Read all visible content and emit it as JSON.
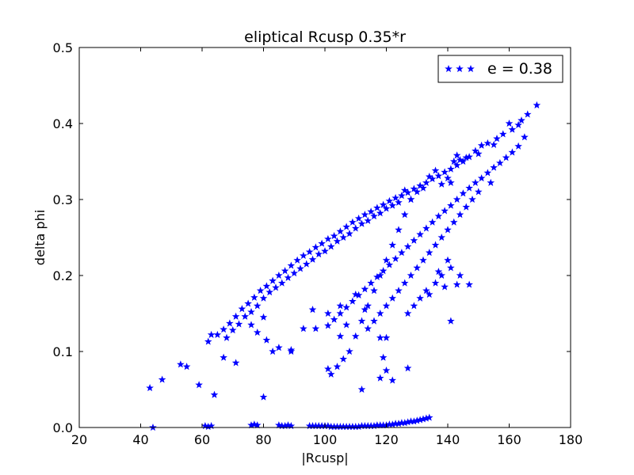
{
  "chart_data": {
    "type": "scatter",
    "title": "eliptical Rcusp 0.35*r",
    "xlabel": "|Rcusp|",
    "ylabel": "delta phi",
    "xlim": [
      20,
      180
    ],
    "ylim": [
      0,
      0.5
    ],
    "x_ticks": [
      20,
      40,
      60,
      80,
      100,
      120,
      140,
      160,
      180
    ],
    "y_ticks": [
      0.0,
      0.1,
      0.2,
      0.3,
      0.4,
      0.5
    ],
    "x_tick_labels": [
      "20",
      "40",
      "60",
      "80",
      "100",
      "120",
      "140",
      "160",
      "180"
    ],
    "y_tick_labels": [
      "0.0",
      "0.1",
      "0.2",
      "0.3",
      "0.4",
      "0.5"
    ],
    "grid": false,
    "legend_position": "top-right",
    "series": [
      {
        "name": "e = 0.38",
        "color": "#0000ff",
        "marker": "star",
        "points": [
          [
            169,
            0.424
          ],
          [
            166,
            0.412
          ],
          [
            164,
            0.404
          ],
          [
            163,
            0.398
          ],
          [
            161,
            0.392
          ],
          [
            158,
            0.386
          ],
          [
            156,
            0.38
          ],
          [
            153,
            0.374
          ],
          [
            151,
            0.371
          ],
          [
            149,
            0.364
          ],
          [
            147,
            0.356
          ],
          [
            145,
            0.35
          ],
          [
            143,
            0.345
          ],
          [
            141,
            0.34
          ],
          [
            139,
            0.336
          ],
          [
            137,
            0.331
          ],
          [
            135,
            0.327
          ],
          [
            133,
            0.322
          ],
          [
            131,
            0.318
          ],
          [
            129,
            0.314
          ],
          [
            127,
            0.309
          ],
          [
            125,
            0.305
          ],
          [
            123,
            0.302
          ],
          [
            121,
            0.298
          ],
          [
            119,
            0.293
          ],
          [
            117,
            0.289
          ],
          [
            115,
            0.284
          ],
          [
            113,
            0.28
          ],
          [
            111,
            0.275
          ],
          [
            109,
            0.27
          ],
          [
            107,
            0.264
          ],
          [
            105,
            0.258
          ],
          [
            103,
            0.252
          ],
          [
            101,
            0.248
          ],
          [
            99,
            0.242
          ],
          [
            97,
            0.237
          ],
          [
            95,
            0.231
          ],
          [
            93,
            0.226
          ],
          [
            91,
            0.22
          ],
          [
            89,
            0.213
          ],
          [
            87,
            0.206
          ],
          [
            85,
            0.2
          ],
          [
            83,
            0.193
          ],
          [
            81,
            0.186
          ],
          [
            79,
            0.18
          ],
          [
            77,
            0.171
          ],
          [
            75,
            0.163
          ],
          [
            73,
            0.156
          ],
          [
            71,
            0.146
          ],
          [
            69,
            0.137
          ],
          [
            67,
            0.129
          ],
          [
            65,
            0.122
          ],
          [
            62,
            0.113
          ],
          [
            63,
            0.122
          ],
          [
            160,
            0.4
          ],
          [
            155,
            0.372
          ],
          [
            150,
            0.36
          ],
          [
            146,
            0.355
          ],
          [
            144,
            0.352
          ],
          [
            143,
            0.358
          ],
          [
            142,
            0.35
          ],
          [
            141,
            0.322
          ],
          [
            140,
            0.328
          ],
          [
            138,
            0.32
          ],
          [
            136,
            0.338
          ],
          [
            134,
            0.33
          ],
          [
            132,
            0.315
          ],
          [
            130,
            0.31
          ],
          [
            128,
            0.3
          ],
          [
            126,
            0.312
          ],
          [
            124,
            0.296
          ],
          [
            122,
            0.292
          ],
          [
            120,
            0.288
          ],
          [
            118,
            0.282
          ],
          [
            116,
            0.278
          ],
          [
            114,
            0.272
          ],
          [
            112,
            0.268
          ],
          [
            110,
            0.262
          ],
          [
            108,
            0.255
          ],
          [
            106,
            0.25
          ],
          [
            104,
            0.245
          ],
          [
            102,
            0.238
          ],
          [
            100,
            0.232
          ],
          [
            98,
            0.228
          ],
          [
            96,
            0.221
          ],
          [
            94,
            0.215
          ],
          [
            92,
            0.209
          ],
          [
            90,
            0.203
          ],
          [
            88,
            0.197
          ],
          [
            86,
            0.19
          ],
          [
            84,
            0.184
          ],
          [
            82,
            0.178
          ],
          [
            80,
            0.17
          ],
          [
            78,
            0.16
          ],
          [
            76,
            0.152
          ],
          [
            74,
            0.146
          ],
          [
            72,
            0.136
          ],
          [
            70,
            0.128
          ],
          [
            68,
            0.118
          ],
          [
            165,
            0.382
          ],
          [
            163,
            0.37
          ],
          [
            161,
            0.362
          ],
          [
            159,
            0.355
          ],
          [
            157,
            0.348
          ],
          [
            155,
            0.342
          ],
          [
            153,
            0.335
          ],
          [
            151,
            0.328
          ],
          [
            149,
            0.322
          ],
          [
            147,
            0.315
          ],
          [
            145,
            0.308
          ],
          [
            143,
            0.3
          ],
          [
            141,
            0.292
          ],
          [
            139,
            0.285
          ],
          [
            137,
            0.278
          ],
          [
            135,
            0.27
          ],
          [
            133,
            0.262
          ],
          [
            131,
            0.254
          ],
          [
            129,
            0.246
          ],
          [
            127,
            0.238
          ],
          [
            125,
            0.23
          ],
          [
            123,
            0.222
          ],
          [
            121,
            0.214
          ],
          [
            119,
            0.206
          ],
          [
            117,
            0.198
          ],
          [
            115,
            0.19
          ],
          [
            113,
            0.182
          ],
          [
            111,
            0.174
          ],
          [
            109,
            0.166
          ],
          [
            107,
            0.158
          ],
          [
            105,
            0.15
          ],
          [
            103,
            0.142
          ],
          [
            101,
            0.134
          ],
          [
            154,
            0.322
          ],
          [
            150,
            0.31
          ],
          [
            148,
            0.3
          ],
          [
            146,
            0.29
          ],
          [
            144,
            0.28
          ],
          [
            142,
            0.27
          ],
          [
            140,
            0.26
          ],
          [
            138,
            0.25
          ],
          [
            136,
            0.24
          ],
          [
            134,
            0.23
          ],
          [
            132,
            0.22
          ],
          [
            130,
            0.21
          ],
          [
            128,
            0.2
          ],
          [
            126,
            0.19
          ],
          [
            124,
            0.18
          ],
          [
            122,
            0.17
          ],
          [
            120,
            0.16
          ],
          [
            118,
            0.15
          ],
          [
            116,
            0.14
          ],
          [
            114,
            0.13
          ],
          [
            143,
            0.188
          ],
          [
            147,
            0.188
          ],
          [
            144,
            0.2
          ],
          [
            141,
            0.21
          ],
          [
            140,
            0.22
          ],
          [
            138,
            0.2
          ],
          [
            136,
            0.19
          ],
          [
            133,
            0.18
          ],
          [
            131,
            0.17
          ],
          [
            129,
            0.16
          ],
          [
            127,
            0.15
          ],
          [
            134,
            0.175
          ],
          [
            139,
            0.185
          ],
          [
            137,
            0.205
          ],
          [
            141,
            0.14
          ],
          [
            128,
            0.3
          ],
          [
            126,
            0.28
          ],
          [
            124,
            0.26
          ],
          [
            122,
            0.24
          ],
          [
            120,
            0.22
          ],
          [
            118,
            0.2
          ],
          [
            116,
            0.18
          ],
          [
            114,
            0.16
          ],
          [
            112,
            0.14
          ],
          [
            110,
            0.12
          ],
          [
            108,
            0.1
          ],
          [
            106,
            0.09
          ],
          [
            104,
            0.08
          ],
          [
            102,
            0.07
          ],
          [
            118,
            0.118
          ],
          [
            120,
            0.118
          ],
          [
            119,
            0.092
          ],
          [
            120,
            0.075
          ],
          [
            122,
            0.062
          ],
          [
            118,
            0.065
          ],
          [
            127,
            0.078
          ],
          [
            112,
            0.05
          ],
          [
            101,
            0.077
          ],
          [
            89,
            0.102
          ],
          [
            89,
            0.1
          ],
          [
            85,
            0.105
          ],
          [
            93,
            0.13
          ],
          [
            97,
            0.13
          ],
          [
            105,
            0.12
          ],
          [
            107,
            0.135
          ],
          [
            96,
            0.155
          ],
          [
            101,
            0.15
          ],
          [
            105,
            0.16
          ],
          [
            110,
            0.175
          ],
          [
            113,
            0.155
          ],
          [
            80,
            0.145
          ],
          [
            76,
            0.135
          ],
          [
            78,
            0.125
          ],
          [
            81,
            0.115
          ],
          [
            83,
            0.1
          ],
          [
            64,
            0.043
          ],
          [
            59,
            0.056
          ],
          [
            55,
            0.08
          ],
          [
            53,
            0.083
          ],
          [
            47,
            0.063
          ],
          [
            43,
            0.052
          ],
          [
            80,
            0.04
          ],
          [
            71,
            0.085
          ],
          [
            67,
            0.092
          ],
          [
            44,
            0.0
          ],
          [
            61,
            0.002
          ],
          [
            63,
            0.002
          ],
          [
            76,
            0.003
          ],
          [
            78,
            0.003
          ],
          [
            85,
            0.003
          ],
          [
            87,
            0.002
          ],
          [
            89,
            0.002
          ],
          [
            95,
            0.002
          ],
          [
            97,
            0.002
          ],
          [
            99,
            0.002
          ],
          [
            101,
            0.002
          ],
          [
            103,
            0.001
          ],
          [
            105,
            0.001
          ],
          [
            107,
            0.001
          ],
          [
            109,
            0.001
          ],
          [
            111,
            0.001
          ],
          [
            113,
            0.002
          ],
          [
            115,
            0.002
          ],
          [
            117,
            0.003
          ],
          [
            119,
            0.003
          ],
          [
            121,
            0.004
          ],
          [
            123,
            0.005
          ],
          [
            127,
            0.007
          ],
          [
            128,
            0.008
          ],
          [
            129,
            0.008
          ],
          [
            130,
            0.009
          ],
          [
            131,
            0.01
          ],
          [
            132,
            0.011
          ],
          [
            133,
            0.012
          ],
          [
            134,
            0.013
          ],
          [
            126,
            0.006
          ],
          [
            125,
            0.006
          ],
          [
            124,
            0.005
          ],
          [
            122,
            0.004
          ],
          [
            120,
            0.003
          ],
          [
            118,
            0.003
          ],
          [
            116,
            0.002
          ],
          [
            114,
            0.002
          ],
          [
            112,
            0.002
          ],
          [
            110,
            0.001
          ],
          [
            108,
            0.001
          ],
          [
            106,
            0.001
          ],
          [
            104,
            0.001
          ],
          [
            102,
            0.001
          ],
          [
            100,
            0.002
          ],
          [
            98,
            0.002
          ],
          [
            96,
            0.002
          ],
          [
            88,
            0.003
          ],
          [
            86,
            0.002
          ],
          [
            77,
            0.004
          ],
          [
            62,
            0.001
          ]
        ]
      }
    ]
  }
}
